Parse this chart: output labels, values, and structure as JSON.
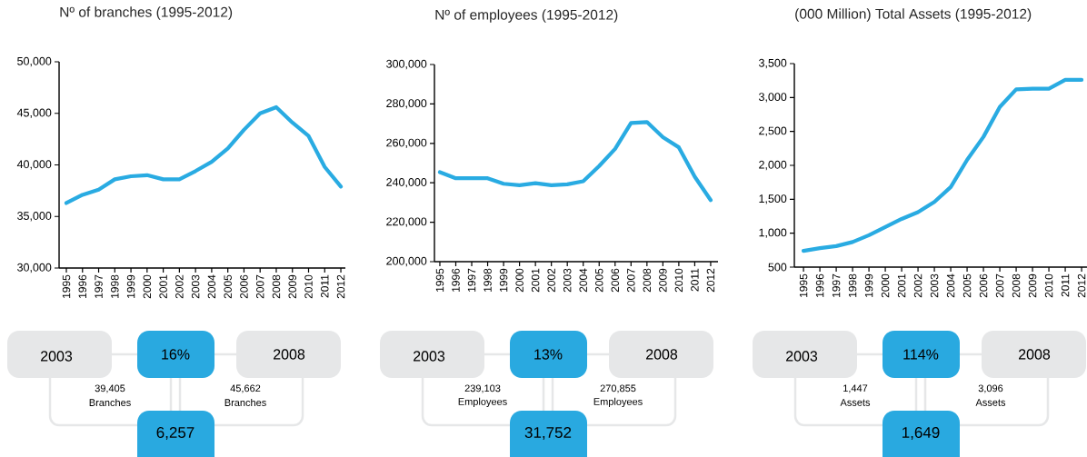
{
  "chart_data": [
    {
      "type": "line",
      "title": "Nº of branches (1995-2012)",
      "categories": [
        "1995",
        "1996",
        "1997",
        "1998",
        "1999",
        "2000",
        "2001",
        "2002",
        "2003",
        "2004",
        "2005",
        "2006",
        "2007",
        "2008",
        "2009",
        "2010",
        "2011",
        "2012"
      ],
      "values": [
        36300,
        37100,
        37600,
        38600,
        38900,
        39000,
        38600,
        38600,
        39400,
        40300,
        41600,
        43400,
        45000,
        45600,
        44100,
        42800,
        39800,
        37900
      ],
      "color": "#29abe2",
      "marker": "none",
      "ylim": [
        30000,
        50000
      ],
      "yticks": [
        {
          "value": 30000,
          "label": "30,000"
        },
        {
          "value": 35000,
          "label": "35,000"
        },
        {
          "value": 40000,
          "label": "40,000"
        },
        {
          "value": 45000,
          "label": "45,000"
        },
        {
          "value": 50000,
          "label": "50,000"
        }
      ]
    },
    {
      "type": "line",
      "title": "Nº of employees (1995-2012)",
      "categories": [
        "1995",
        "1996",
        "1997",
        "1998",
        "1999",
        "2000",
        "2001",
        "2002",
        "2003",
        "2004",
        "2005",
        "2006",
        "2007",
        "2008",
        "2009",
        "2010",
        "2011",
        "2012"
      ],
      "values": [
        245400,
        242300,
        242300,
        242300,
        239500,
        238800,
        239800,
        238800,
        239200,
        240800,
        248500,
        257200,
        270300,
        270800,
        263100,
        258000,
        243100,
        231200
      ],
      "color": "#29abe2",
      "marker": "none",
      "ylim": [
        200000,
        300000
      ],
      "yticks": [
        {
          "value": 200000,
          "label": "200,000"
        },
        {
          "value": 220000,
          "label": "220,000"
        },
        {
          "value": 240000,
          "label": "240,000"
        },
        {
          "value": 260000,
          "label": "260,000"
        },
        {
          "value": 280000,
          "label": "280,000"
        },
        {
          "value": 300000,
          "label": "300,000"
        }
      ]
    },
    {
      "type": "line",
      "title": "(000 Million) Total Assets (1995-2012)",
      "categories": [
        "1995",
        "1996",
        "1997",
        "1998",
        "1999",
        "2000",
        "2001",
        "2002",
        "2003",
        "2004",
        "2005",
        "2006",
        "2007",
        "2008",
        "2009",
        "2010",
        "2011",
        "2012"
      ],
      "values": [
        740,
        780,
        810,
        870,
        970,
        1090,
        1210,
        1310,
        1460,
        1680,
        2080,
        2420,
        2860,
        3120,
        3130,
        3130,
        3260,
        3260
      ],
      "color": "#29abe2",
      "marker": "none",
      "ylim": [
        500,
        3500
      ],
      "yticks": [
        500,
        {
          "value": 1000,
          "label": "1,000"
        },
        {
          "value": 1500,
          "label": "1,500"
        },
        {
          "value": 2000,
          "label": "2,000"
        },
        {
          "value": 2500,
          "label": "2,500"
        },
        {
          "value": 3000,
          "label": "3,000"
        },
        {
          "value": 3500,
          "label": "3,500"
        }
      ]
    },
    {
      "type": "other",
      "annotations": [
        "2003",
        "16%",
        "2008",
        "39,405",
        "Branches",
        "45,662",
        "Branches",
        "6,257"
      ]
    },
    {
      "type": "other",
      "annotations": [
        "2003",
        "13%",
        "2008",
        "239,103",
        "Employees",
        "270,855",
        "Employees",
        "31,752"
      ]
    },
    {
      "type": "other",
      "annotations": [
        "2003",
        "114%",
        "2008",
        "1,447",
        "Assets",
        "3,096",
        "Assets",
        "1,649"
      ]
    }
  ]
}
